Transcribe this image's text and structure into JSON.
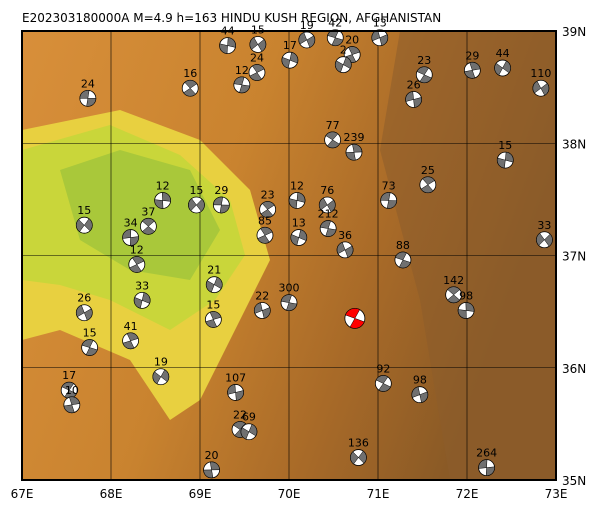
{
  "map": {
    "title": "E202303180000A M=4.9 h=163 HINDU KUSH REGION, AFGHANISTAN",
    "xlim": [
      67,
      73
    ],
    "ylim": [
      35,
      39
    ],
    "xticks": [
      {
        "value": 67,
        "label": "67E"
      },
      {
        "value": 68,
        "label": "68E"
      },
      {
        "value": 69,
        "label": "69E"
      },
      {
        "value": 70,
        "label": "70E"
      },
      {
        "value": 71,
        "label": "71E"
      },
      {
        "value": 72,
        "label": "72E"
      },
      {
        "value": 73,
        "label": "73E"
      }
    ],
    "yticks": [
      {
        "value": 35,
        "label": "35N"
      },
      {
        "value": 36,
        "label": "36N"
      },
      {
        "value": 37,
        "label": "37N"
      },
      {
        "value": 38,
        "label": "38N"
      },
      {
        "value": 39,
        "label": "39N"
      }
    ],
    "main_event": {
      "lon": 70.74,
      "lat": 36.44,
      "color": "#ff0000"
    },
    "events": [
      {
        "label": "24",
        "lon": 67.74,
        "lat": 38.4
      },
      {
        "label": "16",
        "lon": 68.89,
        "lat": 38.49
      },
      {
        "label": "44",
        "lon": 69.31,
        "lat": 38.87
      },
      {
        "label": "15",
        "lon": 69.65,
        "lat": 38.88
      },
      {
        "label": "12",
        "lon": 69.47,
        "lat": 38.52
      },
      {
        "label": "24",
        "lon": 69.64,
        "lat": 38.63
      },
      {
        "label": "17",
        "lon": 70.01,
        "lat": 38.74
      },
      {
        "label": "19",
        "lon": 70.2,
        "lat": 38.92
      },
      {
        "label": "42",
        "lon": 70.52,
        "lat": 38.94
      },
      {
        "label": "20",
        "lon": 70.71,
        "lat": 38.79
      },
      {
        "label": "2",
        "lon": 70.61,
        "lat": 38.7
      },
      {
        "label": "13",
        "lon": 71.02,
        "lat": 38.94
      },
      {
        "label": "23",
        "lon": 71.52,
        "lat": 38.61
      },
      {
        "label": "29",
        "lon": 72.06,
        "lat": 38.65
      },
      {
        "label": "44",
        "lon": 72.4,
        "lat": 38.67
      },
      {
        "label": "26",
        "lon": 71.4,
        "lat": 38.39
      },
      {
        "label": "77",
        "lon": 70.49,
        "lat": 38.03
      },
      {
        "label": "239",
        "lon": 70.73,
        "lat": 37.92
      },
      {
        "label": "15",
        "lon": 67.7,
        "lat": 37.27
      },
      {
        "label": "34",
        "lon": 68.22,
        "lat": 37.16
      },
      {
        "label": "37",
        "lon": 68.42,
        "lat": 37.26
      },
      {
        "label": "12",
        "lon": 68.58,
        "lat": 37.49
      },
      {
        "label": "15",
        "lon": 68.96,
        "lat": 37.45
      },
      {
        "label": "29",
        "lon": 69.24,
        "lat": 37.45
      },
      {
        "label": "23",
        "lon": 69.76,
        "lat": 37.41
      },
      {
        "label": "12",
        "lon": 70.09,
        "lat": 37.49
      },
      {
        "label": "76",
        "lon": 70.43,
        "lat": 37.45
      },
      {
        "label": "212",
        "lon": 70.44,
        "lat": 37.24
      },
      {
        "label": "12",
        "lon": 68.29,
        "lat": 36.92
      },
      {
        "label": "33",
        "lon": 68.35,
        "lat": 36.6
      },
      {
        "label": "26",
        "lon": 67.7,
        "lat": 36.49
      },
      {
        "label": "15",
        "lon": 67.76,
        "lat": 36.18
      },
      {
        "label": "41",
        "lon": 68.22,
        "lat": 36.24
      },
      {
        "label": "21",
        "lon": 69.16,
        "lat": 36.74
      },
      {
        "label": "22",
        "lon": 69.7,
        "lat": 36.51
      },
      {
        "label": "17",
        "lon": 67.53,
        "lat": 35.8
      },
      {
        "label": "10",
        "lon": 67.56,
        "lat": 35.67
      },
      {
        "label": "19",
        "lon": 68.56,
        "lat": 35.92
      },
      {
        "label": "107",
        "lon": 69.4,
        "lat": 35.78
      },
      {
        "label": "22",
        "lon": 69.45,
        "lat": 35.45
      },
      {
        "label": "20",
        "lon": 69.13,
        "lat": 35.09
      },
      {
        "label": "136",
        "lon": 70.78,
        "lat": 35.2
      },
      {
        "label": "264",
        "lon": 72.22,
        "lat": 35.11
      },
      {
        "label": "142",
        "lon": 71.85,
        "lat": 36.65
      },
      {
        "label": "98",
        "lon": 71.99,
        "lat": 36.51
      },
      {
        "label": "33",
        "lon": 72.87,
        "lat": 37.14
      },
      {
        "label": "73",
        "lon": 71.12,
        "lat": 37.49
      },
      {
        "label": "25",
        "lon": 71.56,
        "lat": 37.63
      },
      {
        "label": "15",
        "lon": 72.43,
        "lat": 37.85
      },
      {
        "label": "110",
        "lon": 72.83,
        "lat": 38.49
      },
      {
        "label": "300",
        "lon": 70.0,
        "lat": 36.58
      },
      {
        "label": "85",
        "lon": 69.73,
        "lat": 37.18
      },
      {
        "label": "13",
        "lon": 70.11,
        "lat": 37.16
      },
      {
        "label": "36",
        "lon": 70.63,
        "lat": 37.05
      },
      {
        "label": "88",
        "lon": 71.28,
        "lat": 36.96
      },
      {
        "label": "15",
        "lon": 69.15,
        "lat": 36.43
      },
      {
        "label": "69",
        "lon": 69.55,
        "lat": 35.43
      },
      {
        "label": "98",
        "lon": 71.47,
        "lat": 35.76
      },
      {
        "label": "92",
        "lon": 71.06,
        "lat": 35.86
      }
    ]
  }
}
